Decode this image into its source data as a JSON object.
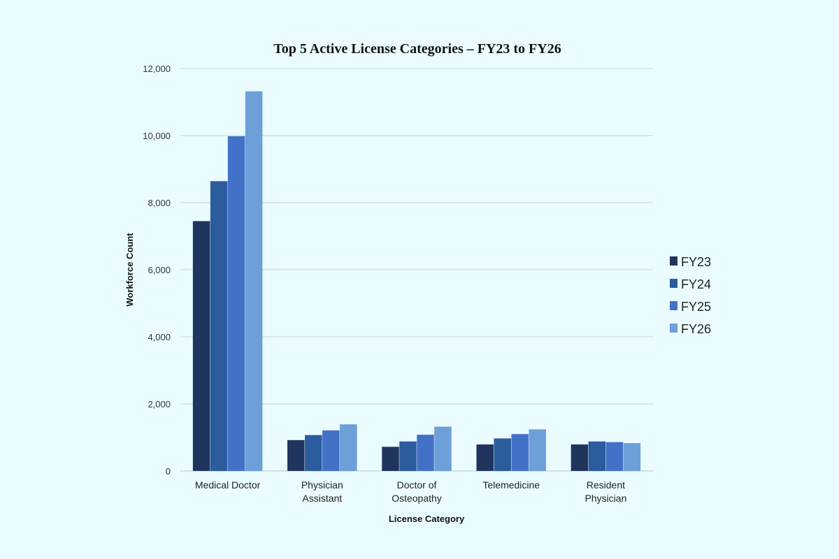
{
  "chart_data": {
    "type": "bar",
    "title": "Top 5 Active License Categories – FY23 to FY26",
    "xlabel": "License Category",
    "ylabel": "Workforce Count",
    "categories": [
      [
        "Medical Doctor"
      ],
      [
        "Physician",
        "Assistant"
      ],
      [
        "Doctor of",
        "Osteopathy"
      ],
      [
        "Telemedicine"
      ],
      [
        "Resident",
        "Physician"
      ]
    ],
    "series": [
      {
        "name": "FY23",
        "color": "#1f355e",
        "values": [
          7450,
          920,
          720,
          790,
          790
        ]
      },
      {
        "name": "FY24",
        "color": "#2c5b9e",
        "values": [
          8640,
          1070,
          880,
          970,
          880
        ]
      },
      {
        "name": "FY25",
        "color": "#4471c8",
        "values": [
          9980,
          1210,
          1080,
          1100,
          860
        ]
      },
      {
        "name": "FY26",
        "color": "#6d9fd9",
        "values": [
          11320,
          1390,
          1320,
          1240,
          830
        ]
      }
    ],
    "ylim": [
      0,
      12000
    ],
    "yticks": [
      {
        "value": 0,
        "label": "0"
      },
      {
        "value": 2000,
        "label": "2,000"
      },
      {
        "value": 4000,
        "label": "4,000"
      },
      {
        "value": 6000,
        "label": "6,000"
      },
      {
        "value": 8000,
        "label": "8,000"
      },
      {
        "value": 10000,
        "label": "10,000"
      },
      {
        "value": 12000,
        "label": "12,000"
      }
    ],
    "grid": true,
    "legend_position": "right"
  }
}
